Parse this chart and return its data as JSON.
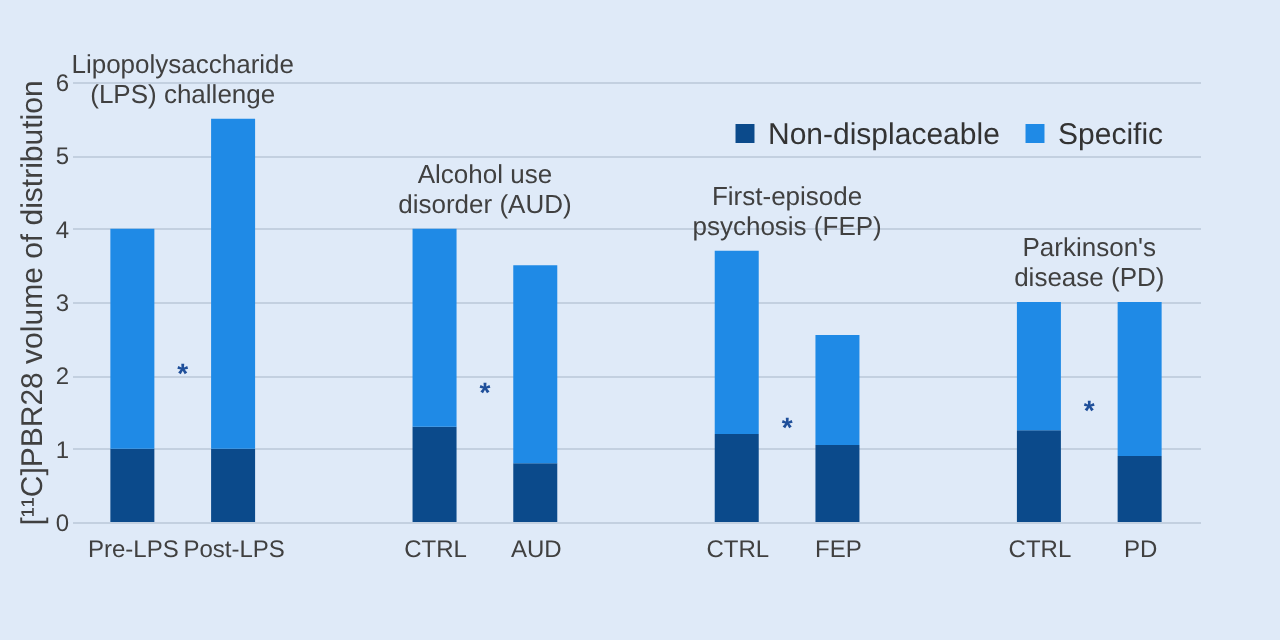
{
  "chart_data": {
    "type": "bar",
    "stacked": true,
    "ylabel": "[¹¹C]PBR28 volume of distribution",
    "categories": [
      "Pre-LPS",
      "Post-LPS",
      null,
      "CTRL",
      "AUD",
      null,
      "CTRL",
      "FEP",
      null,
      "CTRL",
      "PD"
    ],
    "series": [
      {
        "name": "Non-displaceable",
        "color": "#0b4a8b",
        "values": [
          1.0,
          1.0,
          null,
          1.3,
          0.8,
          null,
          1.2,
          1.05,
          null,
          1.25,
          0.9
        ]
      },
      {
        "name": "Specific",
        "color": "#1f8ae6",
        "values": [
          3.0,
          4.5,
          null,
          2.7,
          2.7,
          null,
          2.5,
          1.5,
          null,
          1.75,
          2.1
        ]
      }
    ],
    "ylim": [
      0,
      6
    ],
    "yticks": [
      0,
      1,
      2,
      3,
      4,
      5,
      6
    ],
    "grid": "y",
    "legend": "top right",
    "annotations": [
      "Lipopolysaccharide\n(LPS) challenge",
      "Alcohol use\ndisorder (AUD)",
      "First-episode\npsychosis (FEP)",
      "Parkinson's\ndisease (PD)",
      "*",
      "*",
      "*",
      "*"
    ]
  }
}
